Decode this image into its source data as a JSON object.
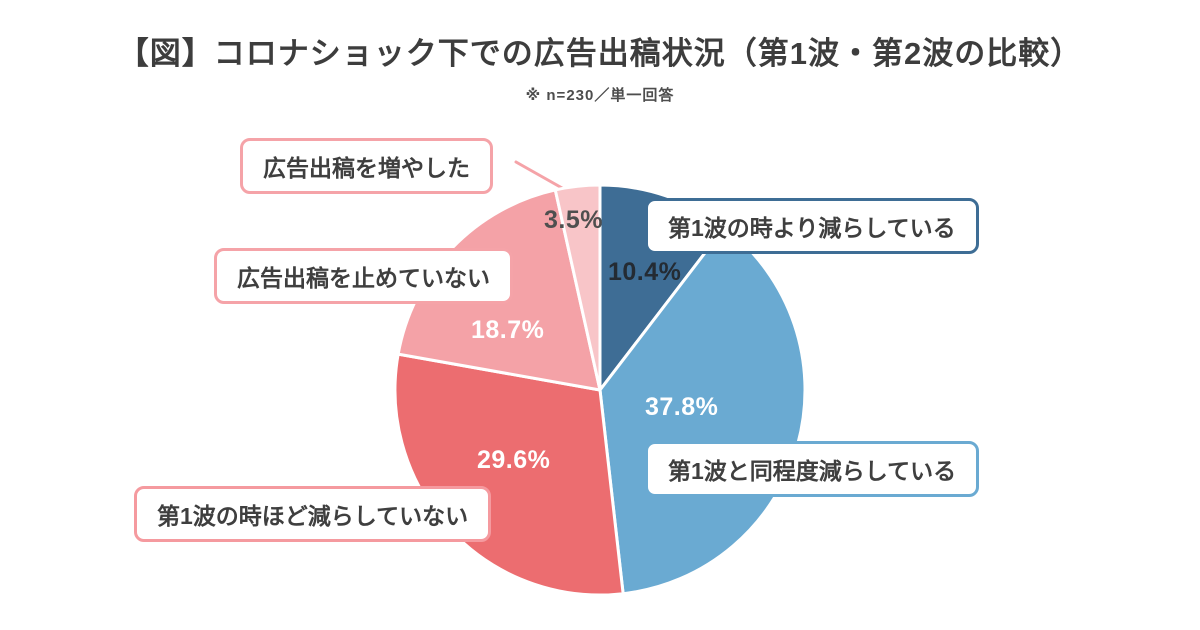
{
  "header": {
    "title": "【図】コロナショック下での広告出稿状況（第1波・第2波の比較）",
    "subtitle": "※ n=230／単一回答"
  },
  "chart_data": {
    "type": "pie",
    "title": "コロナショック下での広告出稿状況（第1波・第2波の比較）",
    "note": "※ n=230／単一回答",
    "start_angle_deg": 0,
    "direction": "clockwise",
    "legend_position": "callout-labels",
    "slices": [
      {
        "label": "第1波の時より減らしている",
        "value": 10.4,
        "pct": "10.4%",
        "color": "#3e6d95"
      },
      {
        "label": "第1波と同程度減らしている",
        "value": 37.8,
        "pct": "37.8%",
        "color": "#6aaad2"
      },
      {
        "label": "第1波の時ほど減らしていない",
        "value": 29.6,
        "pct": "29.6%",
        "color": "#ec6d70"
      },
      {
        "label": "広告出稿を止めていない",
        "value": 18.7,
        "pct": "18.7%",
        "color": "#f4a2a7"
      },
      {
        "label": "広告出稿を増やした",
        "value": 3.5,
        "pct": "3.5%",
        "color": "#f8c5c8"
      }
    ]
  },
  "callouts": [
    {
      "label": "広告出稿を増やした",
      "border_color": "#f5a3a8"
    },
    {
      "label": "広告出稿を止めていない",
      "border_color": "#f5a3a8"
    },
    {
      "label": "第1波の時ほど減らしていない",
      "border_color": "#f59a9f"
    },
    {
      "label": "第1波の時より減らしている",
      "border_color": "#3e6d95"
    },
    {
      "label": "第1波と同程度減らしている",
      "border_color": "#6aaad2"
    }
  ]
}
